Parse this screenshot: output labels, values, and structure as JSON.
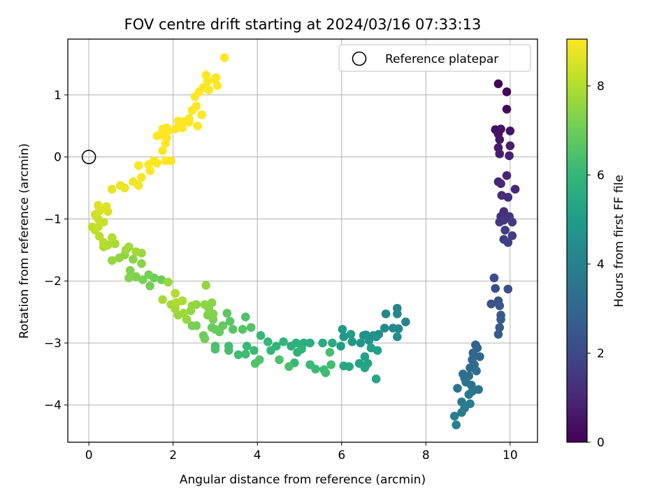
{
  "chart_data": {
    "type": "scatter",
    "title": "FOV centre drift starting at 2024/03/16 07:33:13",
    "xlabel": "Angular distance from reference (arcmin)",
    "ylabel": "Rotation from reference (arcmin)",
    "xlim": [
      -0.5,
      10.65
    ],
    "ylim": [
      -4.6,
      1.9
    ],
    "xticks": [
      0,
      2,
      4,
      6,
      8,
      10
    ],
    "yticks": [
      -4,
      -3,
      -2,
      -1,
      0,
      1
    ],
    "grid": true,
    "legend": {
      "label": "Reference platepar",
      "placement": "top-right"
    },
    "reference_point": {
      "x": 0,
      "y": 0
    },
    "colorbar": {
      "label": "Hours from first FF file",
      "colormap": "viridis",
      "range": [
        0,
        9.05
      ],
      "ticks": [
        0,
        2,
        4,
        6,
        8
      ]
    },
    "colormap_stops": [
      "#440154",
      "#482878",
      "#3e4989",
      "#31688e",
      "#26828e",
      "#1f9e89",
      "#35b779",
      "#6ece58",
      "#b5de2b",
      "#fde725"
    ],
    "series": [
      {
        "points": [
          [
            9.72,
            1.18,
            0.1
          ],
          [
            9.92,
            1.05,
            0.18
          ],
          [
            9.92,
            0.77,
            0.26
          ],
          [
            9.65,
            0.44,
            0.34
          ],
          [
            9.78,
            0.45,
            0.4
          ],
          [
            9.72,
            0.37,
            0.46
          ],
          [
            10.0,
            0.42,
            0.52
          ],
          [
            9.75,
            0.28,
            0.58
          ],
          [
            9.72,
            0.15,
            0.64
          ],
          [
            10.0,
            0.18,
            0.7
          ],
          [
            9.75,
            0.05,
            0.76
          ],
          [
            9.98,
            0.02,
            0.82
          ],
          [
            9.92,
            -0.3,
            0.88
          ],
          [
            9.72,
            -0.4,
            0.94
          ],
          [
            9.78,
            -0.43,
            1.0
          ],
          [
            10.12,
            -0.52,
            1.06
          ],
          [
            9.8,
            -0.62,
            1.12
          ],
          [
            9.95,
            -0.65,
            1.18
          ],
          [
            9.85,
            -0.88,
            1.24
          ],
          [
            9.78,
            -0.96,
            1.3
          ],
          [
            9.98,
            -0.96,
            1.36
          ],
          [
            9.85,
            -1.02,
            1.42
          ],
          [
            9.75,
            -1.05,
            1.48
          ],
          [
            10.05,
            -1.05,
            1.54
          ],
          [
            9.88,
            -1.18,
            1.6
          ],
          [
            10.05,
            -1.27,
            1.66
          ],
          [
            9.85,
            -1.33,
            1.72
          ],
          [
            9.95,
            -1.38,
            1.78
          ],
          [
            9.62,
            -1.95,
            2.1
          ],
          [
            9.65,
            -2.12,
            2.16
          ],
          [
            9.95,
            -2.13,
            2.22
          ],
          [
            9.55,
            -2.37,
            2.28
          ],
          [
            9.72,
            -2.32,
            2.34
          ],
          [
            9.75,
            -2.4,
            2.4
          ],
          [
            9.78,
            -2.55,
            2.46
          ],
          [
            9.78,
            -2.62,
            2.52
          ],
          [
            9.75,
            -2.75,
            2.58
          ],
          [
            9.72,
            -2.86,
            2.64
          ],
          [
            9.18,
            -3.03,
            2.85
          ],
          [
            9.22,
            -3.08,
            2.9
          ],
          [
            9.12,
            -3.16,
            2.95
          ],
          [
            9.28,
            -3.22,
            3.0
          ],
          [
            9.1,
            -3.27,
            3.05
          ],
          [
            9.15,
            -3.35,
            3.1
          ],
          [
            9.05,
            -3.4,
            3.15
          ],
          [
            9.2,
            -3.45,
            3.2
          ],
          [
            8.88,
            -3.5,
            3.25
          ],
          [
            9.02,
            -3.53,
            3.3
          ],
          [
            8.92,
            -3.57,
            3.35
          ],
          [
            8.95,
            -3.63,
            3.4
          ],
          [
            9.08,
            -3.68,
            3.45
          ],
          [
            8.75,
            -3.73,
            3.5
          ],
          [
            9.25,
            -3.75,
            3.55
          ],
          [
            9.1,
            -3.78,
            3.6
          ],
          [
            9.02,
            -3.83,
            3.65
          ],
          [
            8.85,
            -3.95,
            3.7
          ],
          [
            9.05,
            -3.98,
            3.75
          ],
          [
            8.92,
            -4.05,
            3.8
          ],
          [
            8.85,
            -4.12,
            3.85
          ],
          [
            8.68,
            -4.18,
            3.9
          ],
          [
            8.72,
            -4.32,
            3.95
          ],
          [
            7.52,
            -2.66,
            4.05
          ],
          [
            7.32,
            -2.44,
            4.1
          ],
          [
            7.32,
            -2.53,
            4.15
          ],
          [
            7.05,
            -2.53,
            4.2
          ],
          [
            7.35,
            -2.77,
            4.25
          ],
          [
            7.22,
            -2.76,
            4.3
          ],
          [
            7.02,
            -2.76,
            4.35
          ],
          [
            7.32,
            -2.9,
            4.4
          ],
          [
            6.88,
            -2.86,
            4.45
          ],
          [
            6.75,
            -2.88,
            4.5
          ],
          [
            6.58,
            -2.87,
            4.55
          ],
          [
            6.52,
            -2.88,
            4.6
          ],
          [
            6.82,
            -2.9,
            4.65
          ],
          [
            6.65,
            -2.96,
            4.7
          ],
          [
            6.45,
            -3.0,
            4.75
          ],
          [
            6.25,
            -2.98,
            4.8
          ],
          [
            6.05,
            -2.9,
            4.85
          ],
          [
            6.02,
            -2.78,
            4.9
          ],
          [
            6.22,
            -2.86,
            4.95
          ],
          [
            5.98,
            -3.05,
            5.0
          ],
          [
            6.7,
            -3.08,
            5.05
          ],
          [
            6.85,
            -3.12,
            5.1
          ],
          [
            6.55,
            -3.22,
            5.15
          ],
          [
            6.42,
            -3.33,
            5.2
          ],
          [
            6.62,
            -3.33,
            5.25
          ],
          [
            6.55,
            -3.4,
            5.3
          ],
          [
            6.82,
            -3.58,
            5.35
          ],
          [
            6.05,
            -3.37,
            5.4
          ],
          [
            6.18,
            -3.38,
            5.45
          ],
          [
            5.78,
            -3.0,
            5.5
          ],
          [
            5.55,
            -3.0,
            5.55
          ],
          [
            5.25,
            -3.0,
            5.6
          ],
          [
            5.1,
            -3.0,
            5.65
          ],
          [
            4.92,
            -3.0,
            5.7
          ],
          [
            4.8,
            -3.05,
            5.75
          ],
          [
            5.05,
            -3.1,
            5.8
          ],
          [
            4.95,
            -3.15,
            5.85
          ],
          [
            4.62,
            -2.98,
            5.9
          ],
          [
            4.45,
            -3.05,
            5.95
          ],
          [
            4.32,
            -3.12,
            6.0
          ],
          [
            4.88,
            -3.32,
            6.05
          ],
          [
            5.25,
            -3.35,
            6.1
          ],
          [
            5.38,
            -3.42,
            6.15
          ],
          [
            5.58,
            -3.43,
            6.2
          ],
          [
            5.62,
            -3.48,
            6.25
          ],
          [
            5.75,
            -3.35,
            6.3
          ],
          [
            5.72,
            -3.15,
            6.35
          ],
          [
            4.75,
            -3.38,
            6.4
          ],
          [
            4.52,
            -3.27,
            6.45
          ],
          [
            4.05,
            -3.27,
            6.5
          ],
          [
            3.95,
            -3.33,
            6.55
          ],
          [
            4.25,
            -2.98,
            6.0
          ],
          [
            4.08,
            -2.88,
            6.05
          ],
          [
            3.75,
            -3.05,
            6.1
          ],
          [
            3.92,
            -3.12,
            6.15
          ],
          [
            3.72,
            -3.18,
            6.2
          ],
          [
            3.55,
            -3.19,
            6.25
          ],
          [
            3.32,
            -3.05,
            6.3
          ],
          [
            3.32,
            -3.12,
            6.35
          ],
          [
            3.0,
            -3.05,
            6.4
          ],
          [
            3.0,
            -3.1,
            6.45
          ],
          [
            3.72,
            -2.58,
            6.5
          ],
          [
            3.85,
            -2.75,
            6.55
          ],
          [
            3.65,
            -2.78,
            6.6
          ],
          [
            3.42,
            -2.78,
            6.65
          ],
          [
            3.35,
            -2.65,
            6.7
          ],
          [
            3.28,
            -2.52,
            6.75
          ],
          [
            3.18,
            -2.72,
            6.8
          ],
          [
            3.1,
            -2.82,
            6.85
          ],
          [
            3.0,
            -2.78,
            6.9
          ],
          [
            2.92,
            -2.75,
            6.95
          ],
          [
            2.72,
            -2.88,
            7.0
          ],
          [
            2.75,
            -2.93,
            7.05
          ],
          [
            2.55,
            -2.72,
            7.1
          ],
          [
            2.45,
            -2.72,
            7.15
          ],
          [
            2.95,
            -2.62,
            7.2
          ],
          [
            2.82,
            -2.55,
            7.25
          ],
          [
            2.95,
            -2.53,
            7.3
          ],
          [
            2.85,
            -2.45,
            7.35
          ],
          [
            2.92,
            -2.35,
            7.4
          ],
          [
            2.75,
            -2.38,
            7.45
          ],
          [
            2.55,
            -2.38,
            7.5
          ],
          [
            2.42,
            -2.48,
            7.55
          ],
          [
            2.32,
            -2.62,
            7.6
          ],
          [
            2.12,
            -2.55,
            7.65
          ],
          [
            2.25,
            -2.52,
            7.7
          ],
          [
            2.05,
            -2.45,
            7.75
          ],
          [
            1.95,
            -2.38,
            7.8
          ],
          [
            1.75,
            -2.3,
            7.85
          ],
          [
            2.22,
            -2.32,
            7.9
          ],
          [
            2.08,
            -2.35,
            7.95
          ],
          [
            2.05,
            -2.2,
            8.0
          ],
          [
            2.78,
            -2.07,
            7.55
          ],
          [
            2.45,
            -2.4,
            7.6
          ],
          [
            1.88,
            -2.02,
            7.65
          ],
          [
            1.72,
            -1.98,
            7.0
          ],
          [
            1.55,
            -1.95,
            7.05
          ],
          [
            1.45,
            -2.08,
            7.1
          ],
          [
            1.42,
            -1.9,
            7.15
          ],
          [
            1.28,
            -1.98,
            7.2
          ],
          [
            1.12,
            -1.93,
            7.25
          ],
          [
            0.98,
            -1.83,
            7.3
          ],
          [
            0.95,
            -1.95,
            7.35
          ],
          [
            1.25,
            -1.72,
            7.4
          ],
          [
            1.05,
            -1.65,
            7.45
          ],
          [
            0.85,
            -1.58,
            7.5
          ],
          [
            0.72,
            -1.63,
            7.55
          ],
          [
            0.55,
            -1.67,
            7.6
          ],
          [
            1.25,
            -1.55,
            7.65
          ],
          [
            0.88,
            -1.5,
            7.7
          ],
          [
            0.95,
            -1.45,
            7.75
          ],
          [
            1.12,
            -1.53,
            7.8
          ],
          [
            0.62,
            -1.4,
            7.85
          ],
          [
            0.45,
            -1.42,
            7.9
          ],
          [
            0.35,
            -1.45,
            7.95
          ],
          [
            0.55,
            -1.3,
            8.0
          ],
          [
            0.35,
            -1.38,
            8.05
          ],
          [
            0.25,
            -1.28,
            8.1
          ],
          [
            0.15,
            -1.18,
            8.15
          ],
          [
            0.08,
            -1.13,
            8.2
          ],
          [
            0.22,
            -1.13,
            8.25
          ],
          [
            0.35,
            -1.05,
            8.3
          ],
          [
            0.22,
            -1.0,
            8.35
          ],
          [
            0.15,
            -0.93,
            8.4
          ],
          [
            0.25,
            -0.87,
            8.45
          ],
          [
            0.32,
            -0.83,
            8.5
          ],
          [
            0.45,
            -0.88,
            8.55
          ],
          [
            0.22,
            -0.78,
            8.6
          ],
          [
            0.42,
            -0.8,
            8.65
          ],
          [
            0.55,
            -0.52,
            8.7
          ],
          [
            0.75,
            -0.46,
            8.75
          ],
          [
            0.85,
            -0.5,
            8.8
          ],
          [
            1.05,
            -0.4,
            8.85
          ],
          [
            1.18,
            -0.46,
            8.9
          ],
          [
            1.25,
            -0.33,
            8.95
          ],
          [
            1.18,
            -0.14,
            9.0
          ],
          [
            1.42,
            -0.12,
            9.02
          ],
          [
            1.45,
            -0.22,
            9.04
          ],
          [
            1.55,
            -0.06,
            9.06
          ],
          [
            1.62,
            -0.1,
            9.08
          ],
          [
            1.82,
            -0.06,
            9.09
          ],
          [
            1.95,
            -0.06,
            9.1
          ],
          [
            1.75,
            0.1,
            9.12
          ],
          [
            1.82,
            0.22,
            9.14
          ],
          [
            1.72,
            0.35,
            9.16
          ],
          [
            1.85,
            0.3,
            9.18
          ],
          [
            1.88,
            0.42,
            9.2
          ],
          [
            1.85,
            0.47,
            9.22
          ],
          [
            2.05,
            0.45,
            9.24
          ],
          [
            2.15,
            0.55,
            9.26
          ],
          [
            2.25,
            0.57,
            9.28
          ],
          [
            2.38,
            0.62,
            9.3
          ],
          [
            2.45,
            0.75,
            9.32
          ],
          [
            2.55,
            0.82,
            9.34
          ],
          [
            2.58,
            0.5,
            9.36
          ],
          [
            2.68,
            0.68,
            9.38
          ],
          [
            2.52,
            0.97,
            9.4
          ],
          [
            2.62,
            1.05,
            9.42
          ],
          [
            2.72,
            1.12,
            9.44
          ],
          [
            2.82,
            1.22,
            9.46
          ],
          [
            2.78,
            1.32,
            9.48
          ],
          [
            2.98,
            1.25,
            9.5
          ],
          [
            3.05,
            1.15,
            9.52
          ],
          [
            3.02,
            1.28,
            9.54
          ],
          [
            2.85,
            1.08,
            9.56
          ],
          [
            3.22,
            1.6,
            9.58
          ],
          [
            2.22,
            0.47,
            9.4
          ],
          [
            2.38,
            0.56,
            9.42
          ],
          [
            2.12,
            0.58,
            9.44
          ],
          [
            1.75,
            0.45,
            9.46
          ],
          [
            1.62,
            0.34,
            9.48
          ]
        ]
      }
    ]
  }
}
